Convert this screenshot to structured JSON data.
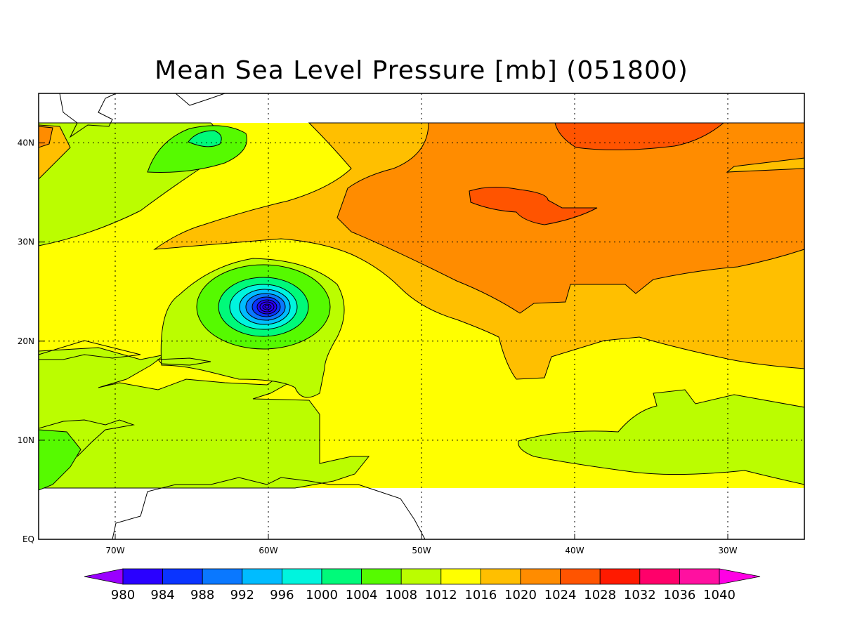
{
  "title": "Mean Sea Level Pressure [mb] (051800)",
  "map": {
    "x_ticks": [
      {
        "lon": -70,
        "label": "70W"
      },
      {
        "lon": -60,
        "label": "60W"
      },
      {
        "lon": -50,
        "label": "50W"
      },
      {
        "lon": -40,
        "label": "40W"
      },
      {
        "lon": -30,
        "label": "30W"
      }
    ],
    "y_ticks": [
      {
        "lat": 0,
        "label": "EQ"
      },
      {
        "lat": 10,
        "label": "10N"
      },
      {
        "lat": 20,
        "label": "20N"
      },
      {
        "lat": 30,
        "label": "30N"
      },
      {
        "lat": 40,
        "label": "40N"
      }
    ],
    "lon_range": [
      -75,
      -25
    ],
    "lat_range": [
      0,
      45
    ],
    "data_lat_range": [
      4,
      42
    ],
    "grid": "dotted",
    "low_center": {
      "lon": -60,
      "lat": 23.2,
      "pressure_min_mb": 980
    }
  },
  "colorbar": {
    "labels": [
      "980",
      "984",
      "988",
      "992",
      "996",
      "1000",
      "1004",
      "1008",
      "1012",
      "1016",
      "1020",
      "1024",
      "1028",
      "1032",
      "1036",
      "1040"
    ],
    "colors": [
      "#9a00ff",
      "#2a00ff",
      "#0a34ff",
      "#0a78ff",
      "#00bcff",
      "#00f4de",
      "#00fa7a",
      "#56fa00",
      "#bbfd00",
      "#ffff00",
      "#ffbf00",
      "#ff8c00",
      "#ff5400",
      "#ff1a00",
      "#ff006a",
      "#ff10a0",
      "#ff00e4"
    ]
  }
}
